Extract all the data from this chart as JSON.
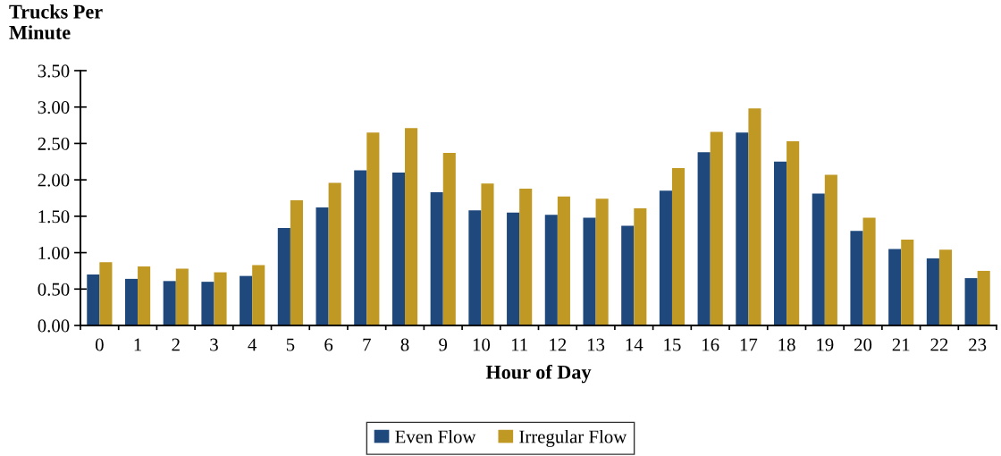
{
  "chart_data": {
    "type": "bar",
    "xlabel": "Hour of Day",
    "ylabel": "Trucks Per\nMinute",
    "categories": [
      "0",
      "1",
      "2",
      "3",
      "4",
      "5",
      "6",
      "7",
      "8",
      "9",
      "10",
      "11",
      "12",
      "13",
      "14",
      "15",
      "16",
      "17",
      "18",
      "19",
      "20",
      "21",
      "22",
      "23"
    ],
    "series": [
      {
        "name": "Even Flow",
        "color": "#1f497d",
        "values": [
          0.7,
          0.64,
          0.61,
          0.6,
          0.68,
          1.34,
          1.62,
          2.13,
          2.1,
          1.83,
          1.58,
          1.55,
          1.52,
          1.48,
          1.37,
          1.85,
          2.38,
          2.65,
          2.25,
          1.81,
          1.3,
          1.05,
          0.92,
          0.65
        ]
      },
      {
        "name": "Irregular Flow",
        "color": "#c09824",
        "values": [
          0.87,
          0.81,
          0.78,
          0.73,
          0.83,
          1.72,
          1.96,
          2.65,
          2.71,
          2.37,
          1.95,
          1.88,
          1.77,
          1.74,
          1.61,
          2.16,
          2.66,
          2.98,
          2.53,
          2.07,
          1.48,
          1.18,
          1.04,
          0.75
        ]
      }
    ],
    "ylim": [
      0,
      3.5
    ],
    "yticks": [
      {
        "value": 0,
        "label": "0.00"
      },
      {
        "value": 0.5,
        "label": "0.50"
      },
      {
        "value": 1,
        "label": "1.00"
      },
      {
        "value": 1.5,
        "label": "1.50"
      },
      {
        "value": 2,
        "label": "2.00"
      },
      {
        "value": 2.5,
        "label": "2.50"
      },
      {
        "value": 3,
        "label": "3.00"
      },
      {
        "value": 3.5,
        "label": "3.50"
      }
    ],
    "grid": false,
    "legend": "bottom"
  }
}
